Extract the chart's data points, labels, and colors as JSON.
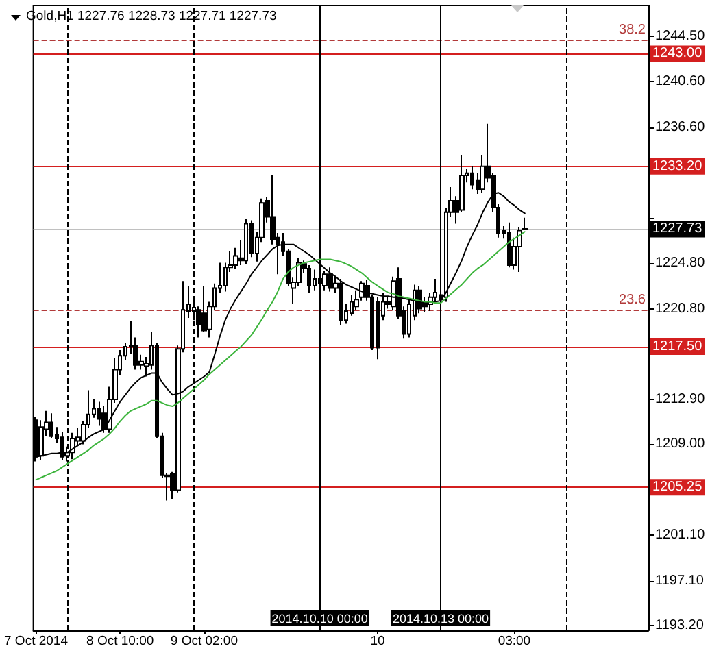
{
  "chart_data": {
    "type": "candlestick",
    "title": "Gold,H1 1227.76 1228.73 1227.71 1227.73",
    "categories": [
      "7 Oct 2014",
      null,
      null,
      null,
      null,
      null,
      null,
      null,
      null,
      null,
      null,
      null,
      null,
      null,
      null,
      null,
      "8 Oct 10:00",
      null,
      null,
      null,
      null,
      null,
      null,
      null,
      null,
      null,
      null,
      null,
      null,
      null,
      null,
      null,
      "9 Oct 02:00",
      null,
      null,
      null,
      null,
      null,
      null,
      null,
      null,
      null,
      null,
      null,
      null,
      null,
      null,
      null,
      null,
      null,
      null,
      null,
      null,
      null,
      null,
      null,
      null,
      null,
      null,
      null,
      null,
      null,
      null,
      null,
      null,
      "10",
      null,
      null,
      null,
      null,
      null,
      null,
      null,
      null,
      null,
      null,
      null,
      null,
      null,
      null,
      null,
      null,
      null,
      null,
      null,
      null,
      null,
      null,
      null,
      null,
      null,
      "03:00",
      null,
      null,
      null,
      null,
      null,
      null,
      null,
      null,
      null,
      null,
      null,
      null,
      null,
      null,
      null,
      null,
      null,
      null,
      null,
      null,
      null,
      null,
      null,
      null,
      null
    ],
    "ohlc": [
      [
        1211.1,
        1211.4,
        1207.5,
        1207.9
      ],
      [
        1208.0,
        1211.1,
        1207.6,
        1210.5
      ],
      [
        1210.3,
        1211.9,
        1209.7,
        1210.9
      ],
      [
        1210.9,
        1211.7,
        1209.5,
        1209.7
      ],
      [
        1209.8,
        1210.5,
        1209.1,
        1209.5
      ],
      [
        1209.6,
        1210.1,
        1207.6,
        1207.9
      ],
      [
        1208.0,
        1208.8,
        1207.5,
        1208.3
      ],
      [
        1208.3,
        1210.0,
        1207.7,
        1209.5
      ],
      [
        1209.3,
        1210.4,
        1208.9,
        1209.6
      ],
      [
        1209.3,
        1211.0,
        1209.0,
        1210.7
      ],
      [
        1210.7,
        1213.7,
        1210.4,
        1211.6
      ],
      [
        1211.6,
        1212.9,
        1211.3,
        1212.1
      ],
      [
        1212.1,
        1212.7,
        1210.6,
        1211.2
      ],
      [
        1211.7,
        1212.3,
        1210.0,
        1210.3
      ],
      [
        1210.3,
        1214.0,
        1210.0,
        1212.9
      ],
      [
        1212.9,
        1216.5,
        1212.6,
        1215.5
      ],
      [
        1215.5,
        1217.2,
        1215.0,
        1216.7
      ],
      [
        1216.7,
        1217.8,
        1216.3,
        1217.5
      ],
      [
        1217.5,
        1219.7,
        1216.9,
        1217.6
      ],
      [
        1217.6,
        1218.3,
        1215.5,
        1215.9
      ],
      [
        1215.9,
        1216.8,
        1215.5,
        1216.2
      ],
      [
        1215.8,
        1216.6,
        1214.9,
        1216.0
      ],
      [
        1215.9,
        1218.8,
        1215.5,
        1217.6
      ],
      [
        1217.6,
        1217.8,
        1209.5,
        1209.7
      ],
      [
        1209.7,
        1210.0,
        1206.1,
        1206.3
      ],
      [
        1206.3,
        1206.5,
        1204.1,
        1206.2
      ],
      [
        1206.4,
        1206.6,
        1204.2,
        1205.0
      ],
      [
        1205.0,
        1217.6,
        1204.8,
        1217.3
      ],
      [
        1217.3,
        1223.2,
        1217.0,
        1220.7
      ],
      [
        1220.6,
        1222.8,
        1220.0,
        1221.2
      ],
      [
        1220.6,
        1221.6,
        1219.8,
        1220.9
      ],
      [
        1220.7,
        1221.0,
        1218.3,
        1219.4
      ],
      [
        1220.4,
        1222.8,
        1218.8,
        1218.9
      ],
      [
        1219.0,
        1221.4,
        1218.3,
        1221.0
      ],
      [
        1221.0,
        1223.0,
        1220.7,
        1222.6
      ],
      [
        1222.6,
        1224.8,
        1222.2,
        1222.8
      ],
      [
        1222.8,
        1224.8,
        1222.3,
        1224.4
      ],
      [
        1224.4,
        1225.8,
        1224.0,
        1224.6
      ],
      [
        1224.6,
        1226.1,
        1224.3,
        1225.4
      ],
      [
        1225.2,
        1226.8,
        1224.6,
        1225.0
      ],
      [
        1225.0,
        1228.6,
        1224.7,
        1228.2
      ],
      [
        1228.2,
        1228.5,
        1225.3,
        1225.6
      ],
      [
        1225.6,
        1227.5,
        1224.9,
        1227.0
      ],
      [
        1227.0,
        1230.4,
        1226.6,
        1230.0
      ],
      [
        1230.2,
        1230.5,
        1228.3,
        1228.8
      ],
      [
        1228.8,
        1232.4,
        1226.4,
        1226.8
      ],
      [
        1227.0,
        1227.4,
        1223.8,
        1226.4
      ],
      [
        1226.6,
        1227.4,
        1225.4,
        1225.8
      ],
      [
        1225.8,
        1226.0,
        1222.8,
        1223.0
      ],
      [
        1222.6,
        1223.5,
        1221.2,
        1223.1
      ],
      [
        1223.1,
        1225.2,
        1222.8,
        1224.8
      ],
      [
        1224.7,
        1225.0,
        1223.9,
        1224.3
      ],
      [
        1224.3,
        1224.6,
        1222.2,
        1222.8
      ],
      [
        1222.8,
        1224.2,
        1222.4,
        1223.4
      ],
      [
        1223.4,
        1223.8,
        1222.5,
        1223.0
      ],
      [
        1222.8,
        1224.1,
        1222.4,
        1223.8
      ],
      [
        1223.8,
        1224.4,
        1222.3,
        1222.6
      ],
      [
        1222.6,
        1223.6,
        1222.2,
        1223.0
      ],
      [
        1223.0,
        1223.4,
        1219.4,
        1219.8
      ],
      [
        1219.8,
        1221.2,
        1219.5,
        1220.6
      ],
      [
        1220.4,
        1222.0,
        1220.2,
        1221.4
      ],
      [
        1221.0,
        1222.4,
        1220.7,
        1221.6
      ],
      [
        1221.8,
        1223.2,
        1221.5,
        1223.0
      ],
      [
        1222.8,
        1223.3,
        1221.5,
        1221.8
      ],
      [
        1221.8,
        1222.0,
        1217.2,
        1217.4
      ],
      [
        1221.4,
        1221.8,
        1216.4,
        1217.4
      ],
      [
        1220.2,
        1222.2,
        1219.8,
        1221.4
      ],
      [
        1221.4,
        1221.8,
        1220.8,
        1221.2
      ],
      [
        1221.0,
        1223.6,
        1220.7,
        1223.2
      ],
      [
        1223.4,
        1224.4,
        1219.9,
        1220.2
      ],
      [
        1220.6,
        1221.0,
        1218.2,
        1218.6
      ],
      [
        1218.6,
        1221.6,
        1218.3,
        1221.2
      ],
      [
        1220.2,
        1222.9,
        1219.8,
        1222.4
      ],
      [
        1222.4,
        1222.8,
        1220.4,
        1220.8
      ],
      [
        1221.4,
        1221.8,
        1220.5,
        1221.0
      ],
      [
        1221.2,
        1222.2,
        1220.6,
        1221.8
      ],
      [
        1221.8,
        1223.4,
        1221.4,
        1222.2
      ],
      [
        1222.0,
        1222.6,
        1221.3,
        1221.6
      ],
      [
        1221.8,
        1229.6,
        1221.4,
        1229.2
      ],
      [
        1229.2,
        1231.4,
        1228.8,
        1230.2
      ],
      [
        1230.2,
        1230.6,
        1228.2,
        1229.2
      ],
      [
        1229.4,
        1234.2,
        1229.2,
        1232.4
      ],
      [
        1232.4,
        1233.0,
        1231.8,
        1232.6
      ],
      [
        1232.6,
        1233.2,
        1231.2,
        1231.6
      ],
      [
        1232.0,
        1232.6,
        1230.8,
        1231.2
      ],
      [
        1231.2,
        1234.2,
        1230.9,
        1233.2
      ],
      [
        1233.2,
        1236.9,
        1231.8,
        1232.2
      ],
      [
        1232.4,
        1232.6,
        1229.2,
        1229.6
      ],
      [
        1229.6,
        1229.9,
        1227.0,
        1227.4
      ],
      [
        1227.6,
        1228.0,
        1226.9,
        1227.4
      ],
      [
        1227.4,
        1228.3,
        1224.4,
        1224.6
      ],
      [
        1224.6,
        1227.0,
        1224.2,
        1226.2
      ],
      [
        1226.2,
        1227.9,
        1224.0,
        1227.6
      ],
      [
        1227.76,
        1228.73,
        1227.71,
        1227.73
      ],
      null,
      null,
      null,
      null,
      null,
      null,
      null,
      null,
      null,
      null,
      null,
      null,
      null,
      null,
      null,
      null,
      null,
      null,
      null,
      null,
      null,
      null,
      null
    ],
    "color": "#000000",
    "series": [
      {
        "type": "line",
        "color": "#000000",
        "values": [
          1207.9,
          1208.0,
          1208.1,
          1208.2,
          1208.2,
          1208.3,
          1208.3,
          1208.6,
          1208.9,
          1209.2,
          1209.6,
          1209.9,
          1210.1,
          1210.3,
          1211.1,
          1211.9,
          1212.7,
          1213.3,
          1213.9,
          1214.4,
          1214.8,
          1215.0,
          1215.2,
          1215.2,
          1214.4,
          1213.8,
          1213.3,
          1213.4,
          1213.6,
          1214.0,
          1214.3,
          1214.6,
          1214.9,
          1215.3,
          1216.8,
          1218.4,
          1219.8,
          1220.8,
          1221.6,
          1222.3,
          1223.0,
          1223.8,
          1224.4,
          1225.0,
          1225.5,
          1226.0,
          1226.3,
          1226.4,
          1226.4,
          1226.4,
          1226.1,
          1225.8,
          1225.5,
          1225.1,
          1224.7,
          1224.3,
          1223.9,
          1223.6,
          1223.2,
          1222.9,
          1222.7,
          1222.5,
          1222.3,
          1222.2,
          1222.1,
          1222.0,
          1221.9,
          1221.9,
          1221.8,
          1221.8,
          1221.7,
          1221.6,
          1221.5,
          1221.4,
          1221.4,
          1221.4,
          1221.4,
          1221.5,
          1222.2,
          1223.1,
          1224.0,
          1225.0,
          1226.2,
          1227.2,
          1228.1,
          1229.2,
          1230.1,
          1230.8,
          1230.9,
          1230.6,
          1230.1,
          1229.8,
          1229.4,
          1229.1,
          null,
          null,
          null,
          null,
          null,
          null,
          null,
          null,
          null,
          null,
          null,
          null,
          null,
          null,
          null,
          null,
          null,
          null,
          null,
          null,
          null,
          null,
          null
        ]
      },
      {
        "type": "line",
        "color": "#3cb43c",
        "values": [
          1205.9,
          1206.1,
          1206.3,
          1206.5,
          1206.7,
          1207.0,
          1207.3,
          1207.6,
          1207.9,
          1208.2,
          1208.5,
          1208.9,
          1209.2,
          1209.5,
          1209.9,
          1210.4,
          1211.0,
          1211.5,
          1211.9,
          1212.1,
          1212.3,
          1212.5,
          1212.8,
          1212.8,
          1212.6,
          1212.4,
          1212.3,
          1212.6,
          1213.0,
          1213.4,
          1213.8,
          1214.2,
          1214.6,
          1215.1,
          1215.5,
          1215.9,
          1216.3,
          1216.7,
          1217.1,
          1217.5,
          1218.0,
          1218.5,
          1219.2,
          1219.9,
          1220.7,
          1221.4,
          1222.3,
          1223.4,
          1224.0,
          1224.4,
          1224.6,
          1224.8,
          1224.9,
          1225.0,
          1225.1,
          1225.1,
          1225.1,
          1225.0,
          1224.9,
          1224.7,
          1224.5,
          1224.2,
          1223.9,
          1223.5,
          1223.1,
          1222.8,
          1222.5,
          1222.2,
          1222.1,
          1221.9,
          1221.8,
          1221.7,
          1221.6,
          1221.5,
          1221.4,
          1221.4,
          1221.3,
          1221.3,
          1221.7,
          1222.1,
          1222.5,
          1222.9,
          1223.4,
          1223.9,
          1224.3,
          1224.6,
          1225.0,
          1225.4,
          1225.8,
          1226.2,
          1226.6,
          1226.9,
          1227.2,
          1227.5,
          null,
          null,
          null,
          null,
          null,
          null,
          null,
          null,
          null,
          null,
          null,
          null,
          null,
          null,
          null,
          null,
          null,
          null,
          null,
          null,
          null,
          null,
          null
        ]
      }
    ],
    "ylim": [
      1192.8,
      1247.2
    ],
    "yticks": [
      {
        "value": 1244.5,
        "label": "1244.50"
      },
      {
        "value": 1240.6,
        "label": "1240.60"
      },
      {
        "value": 1236.6,
        "label": "1236.60"
      },
      {
        "value": 1232.7,
        "label": null
      },
      {
        "value": 1228.7,
        "label": null
      },
      {
        "value": 1224.8,
        "label": "1224.80"
      },
      {
        "value": 1220.8,
        "label": "1220.80"
      },
      {
        "value": 1216.9,
        "label": null
      },
      {
        "value": 1212.9,
        "label": "1212.90"
      },
      {
        "value": 1209.0,
        "label": "1209.00"
      },
      {
        "value": 1205.0,
        "label": null
      },
      {
        "value": 1201.1,
        "label": "1201.10"
      },
      {
        "value": 1197.1,
        "label": "1197.10"
      },
      {
        "value": 1193.2,
        "label": "1193.20"
      }
    ],
    "grid": "x",
    "marker": "none",
    "ref_lines": [
      {
        "axis": "y",
        "value": 1244.2,
        "color": "#b23a3a",
        "line_style": "dashed"
      },
      {
        "axis": "y",
        "value": 1243.0,
        "label": "1243.00",
        "color": "#d41f1f"
      },
      {
        "axis": "y",
        "value": 1233.2,
        "label": "1233.20",
        "color": "#d41f1f"
      },
      {
        "axis": "y",
        "value": 1227.73,
        "label": "1227.73",
        "color": "#c0c0c0"
      },
      {
        "axis": "y",
        "value": 1220.7,
        "color": "#b23a3a",
        "line_style": "dashed"
      },
      {
        "axis": "y",
        "value": 1217.5,
        "label": "1217.50",
        "color": "#d41f1f"
      },
      {
        "axis": "y",
        "value": 1205.25,
        "label": "1205.25",
        "color": "#d41f1f"
      }
    ],
    "annotations": [
      "38.2",
      "23.6",
      "2014.10.10 00:00",
      "2014.10.13 00:00"
    ]
  }
}
